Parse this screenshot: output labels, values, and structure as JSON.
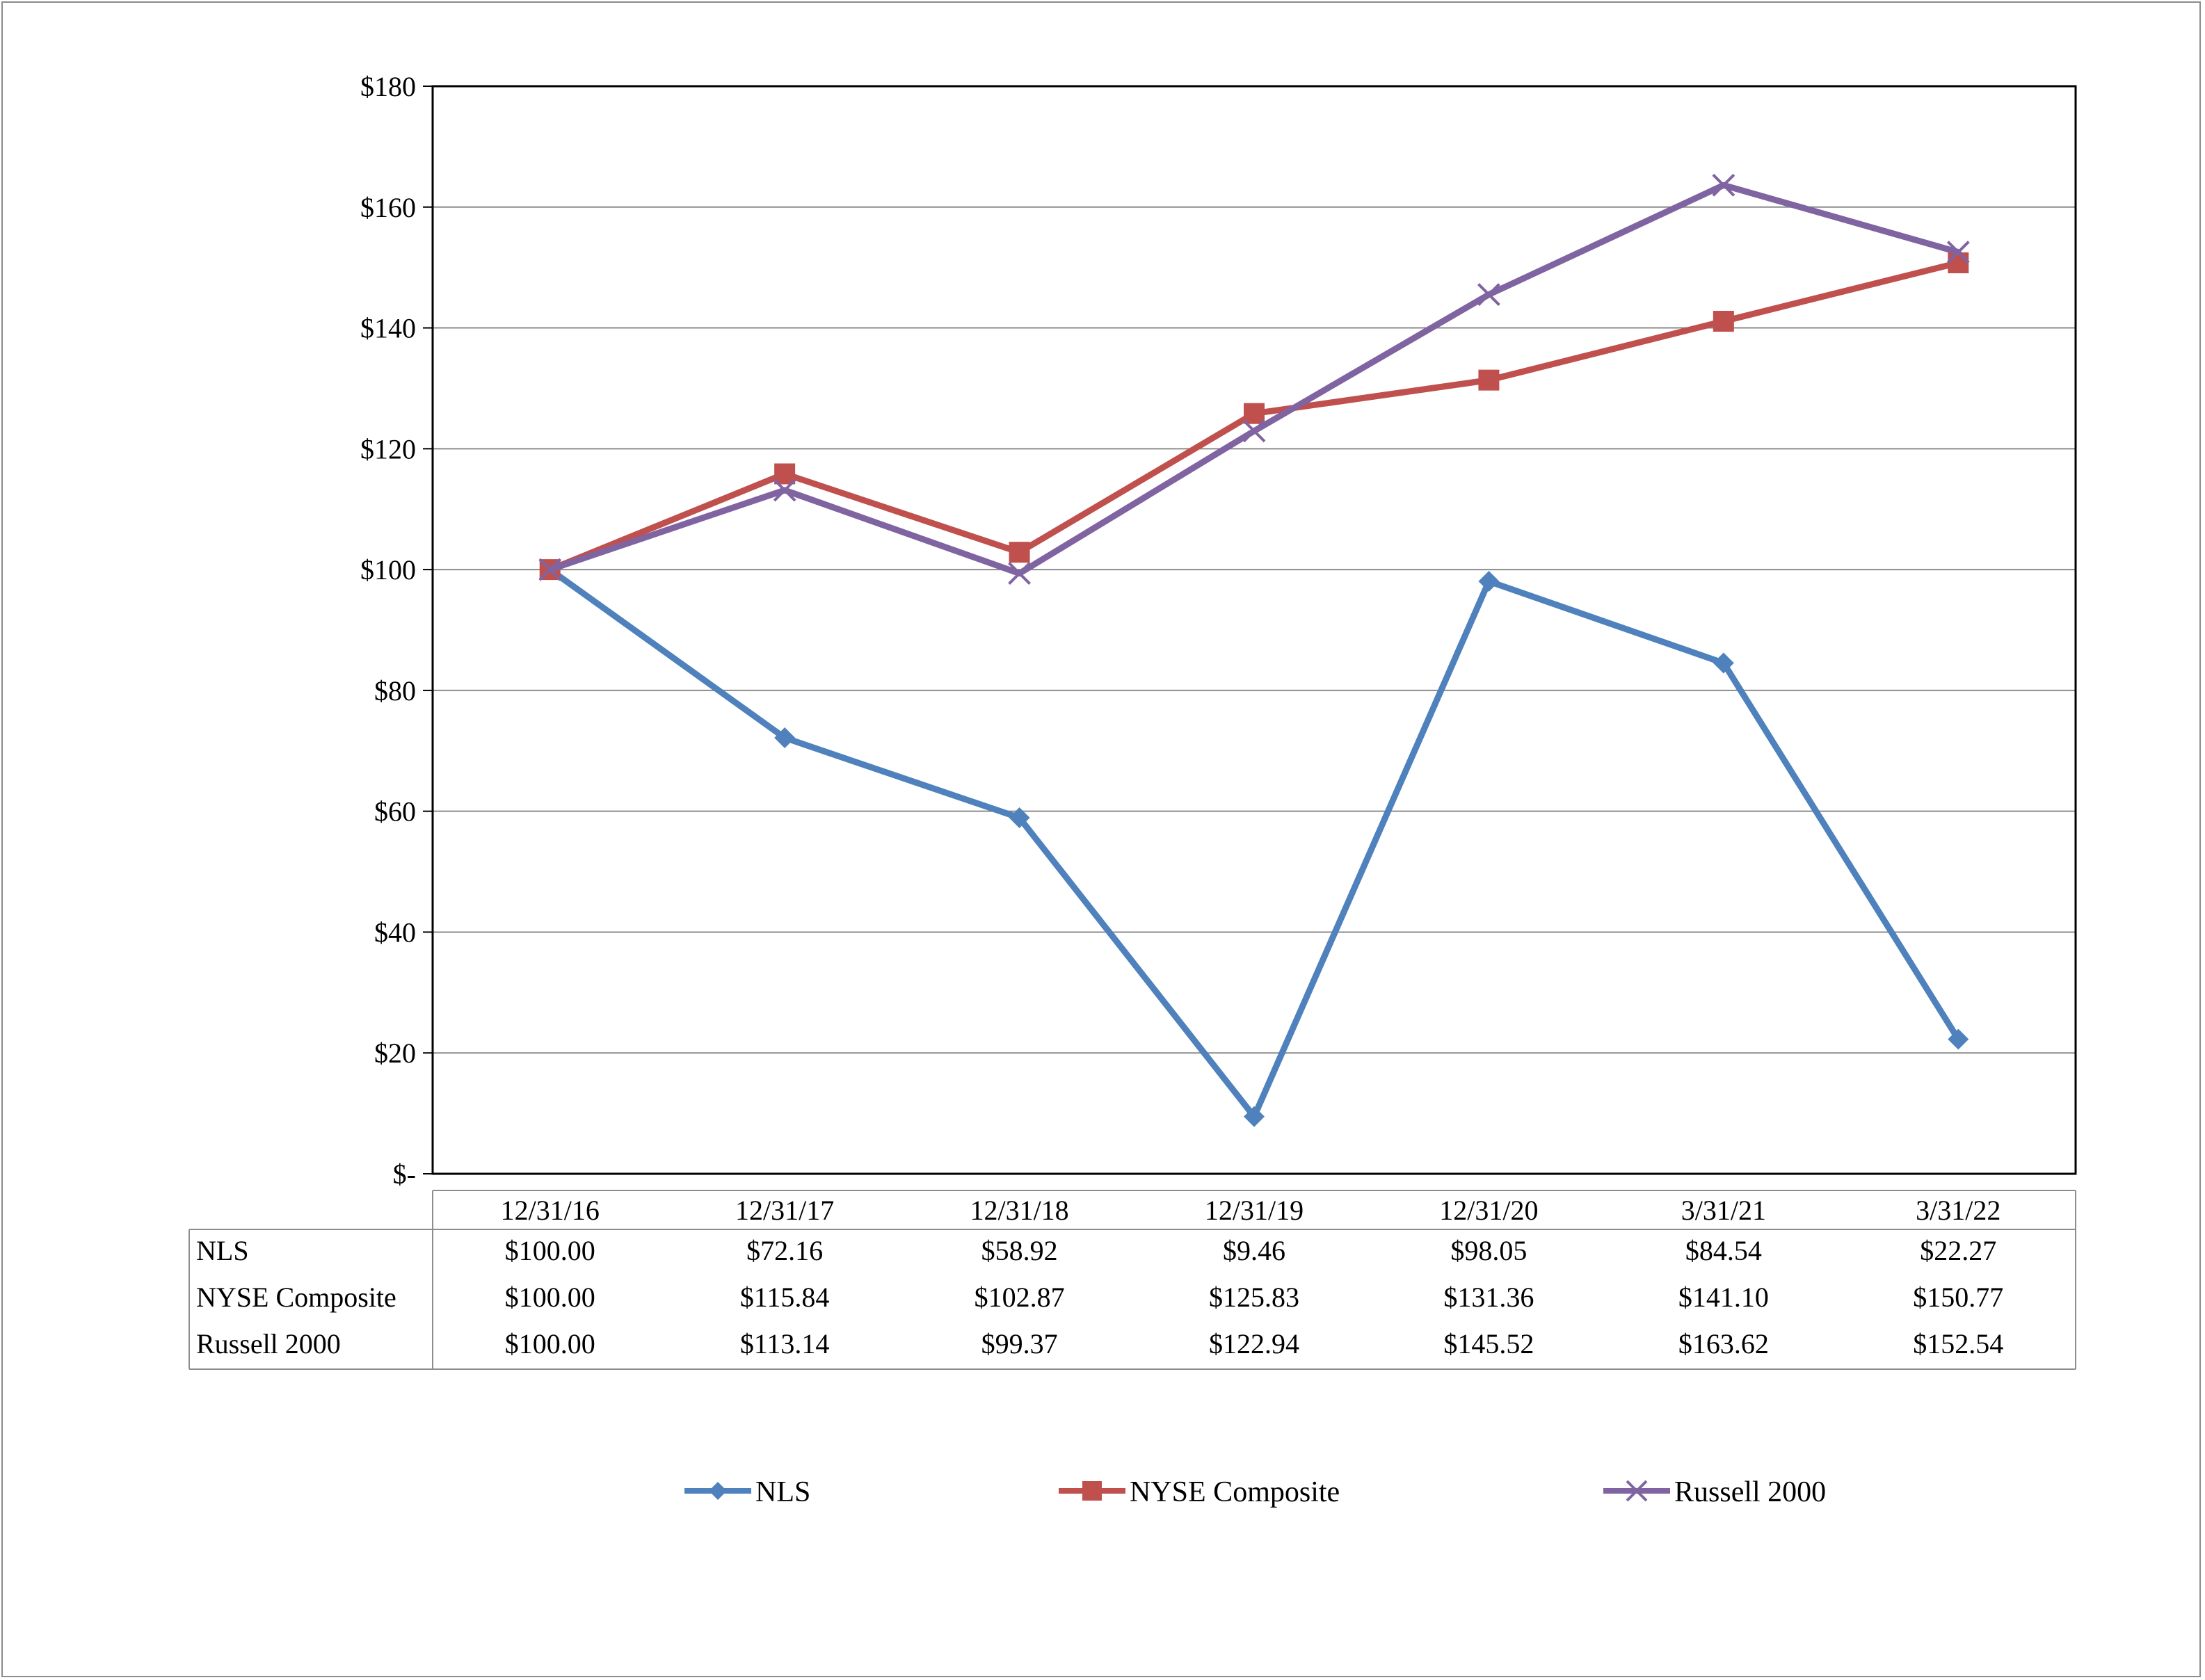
{
  "chart_data": {
    "type": "line",
    "title": "",
    "xlabel": "",
    "ylabel": "",
    "ylim": [
      0,
      180
    ],
    "y_ticks": [
      0,
      20,
      40,
      60,
      80,
      100,
      120,
      140,
      160,
      180
    ],
    "y_tick_labels": [
      "$-",
      "$20",
      "$40",
      "$60",
      "$80",
      "$100",
      "$120",
      "$140",
      "$160",
      "$180"
    ],
    "grid": true,
    "legend_position": "bottom",
    "categories": [
      "12/31/16",
      "12/31/17",
      "12/31/18",
      "12/31/19",
      "12/31/20",
      "3/31/21",
      "3/31/22"
    ],
    "series": [
      {
        "name": "NLS",
        "color": "#4f81bd",
        "marker": "diamond",
        "values": [
          100.0,
          72.16,
          58.92,
          9.46,
          98.05,
          84.54,
          22.27
        ],
        "labels": [
          "$100.00",
          "$72.16",
          "$58.92",
          "$9.46",
          "$98.05",
          "$84.54",
          "$22.27"
        ]
      },
      {
        "name": "NYSE Composite",
        "color": "#c0504d",
        "marker": "square",
        "values": [
          100.0,
          115.84,
          102.87,
          125.83,
          131.36,
          141.1,
          150.77
        ],
        "labels": [
          "$100.00",
          "$115.84",
          "$102.87",
          "$125.83",
          "$131.36",
          "$141.10",
          "$150.77"
        ]
      },
      {
        "name": "Russell 2000",
        "color": "#8064a2",
        "marker": "x",
        "values": [
          100.0,
          113.14,
          99.37,
          122.94,
          145.52,
          163.62,
          152.54
        ],
        "labels": [
          "$100.00",
          "$113.14",
          "$99.37",
          "$122.94",
          "$145.52",
          "$163.62",
          "$152.54"
        ]
      }
    ]
  }
}
